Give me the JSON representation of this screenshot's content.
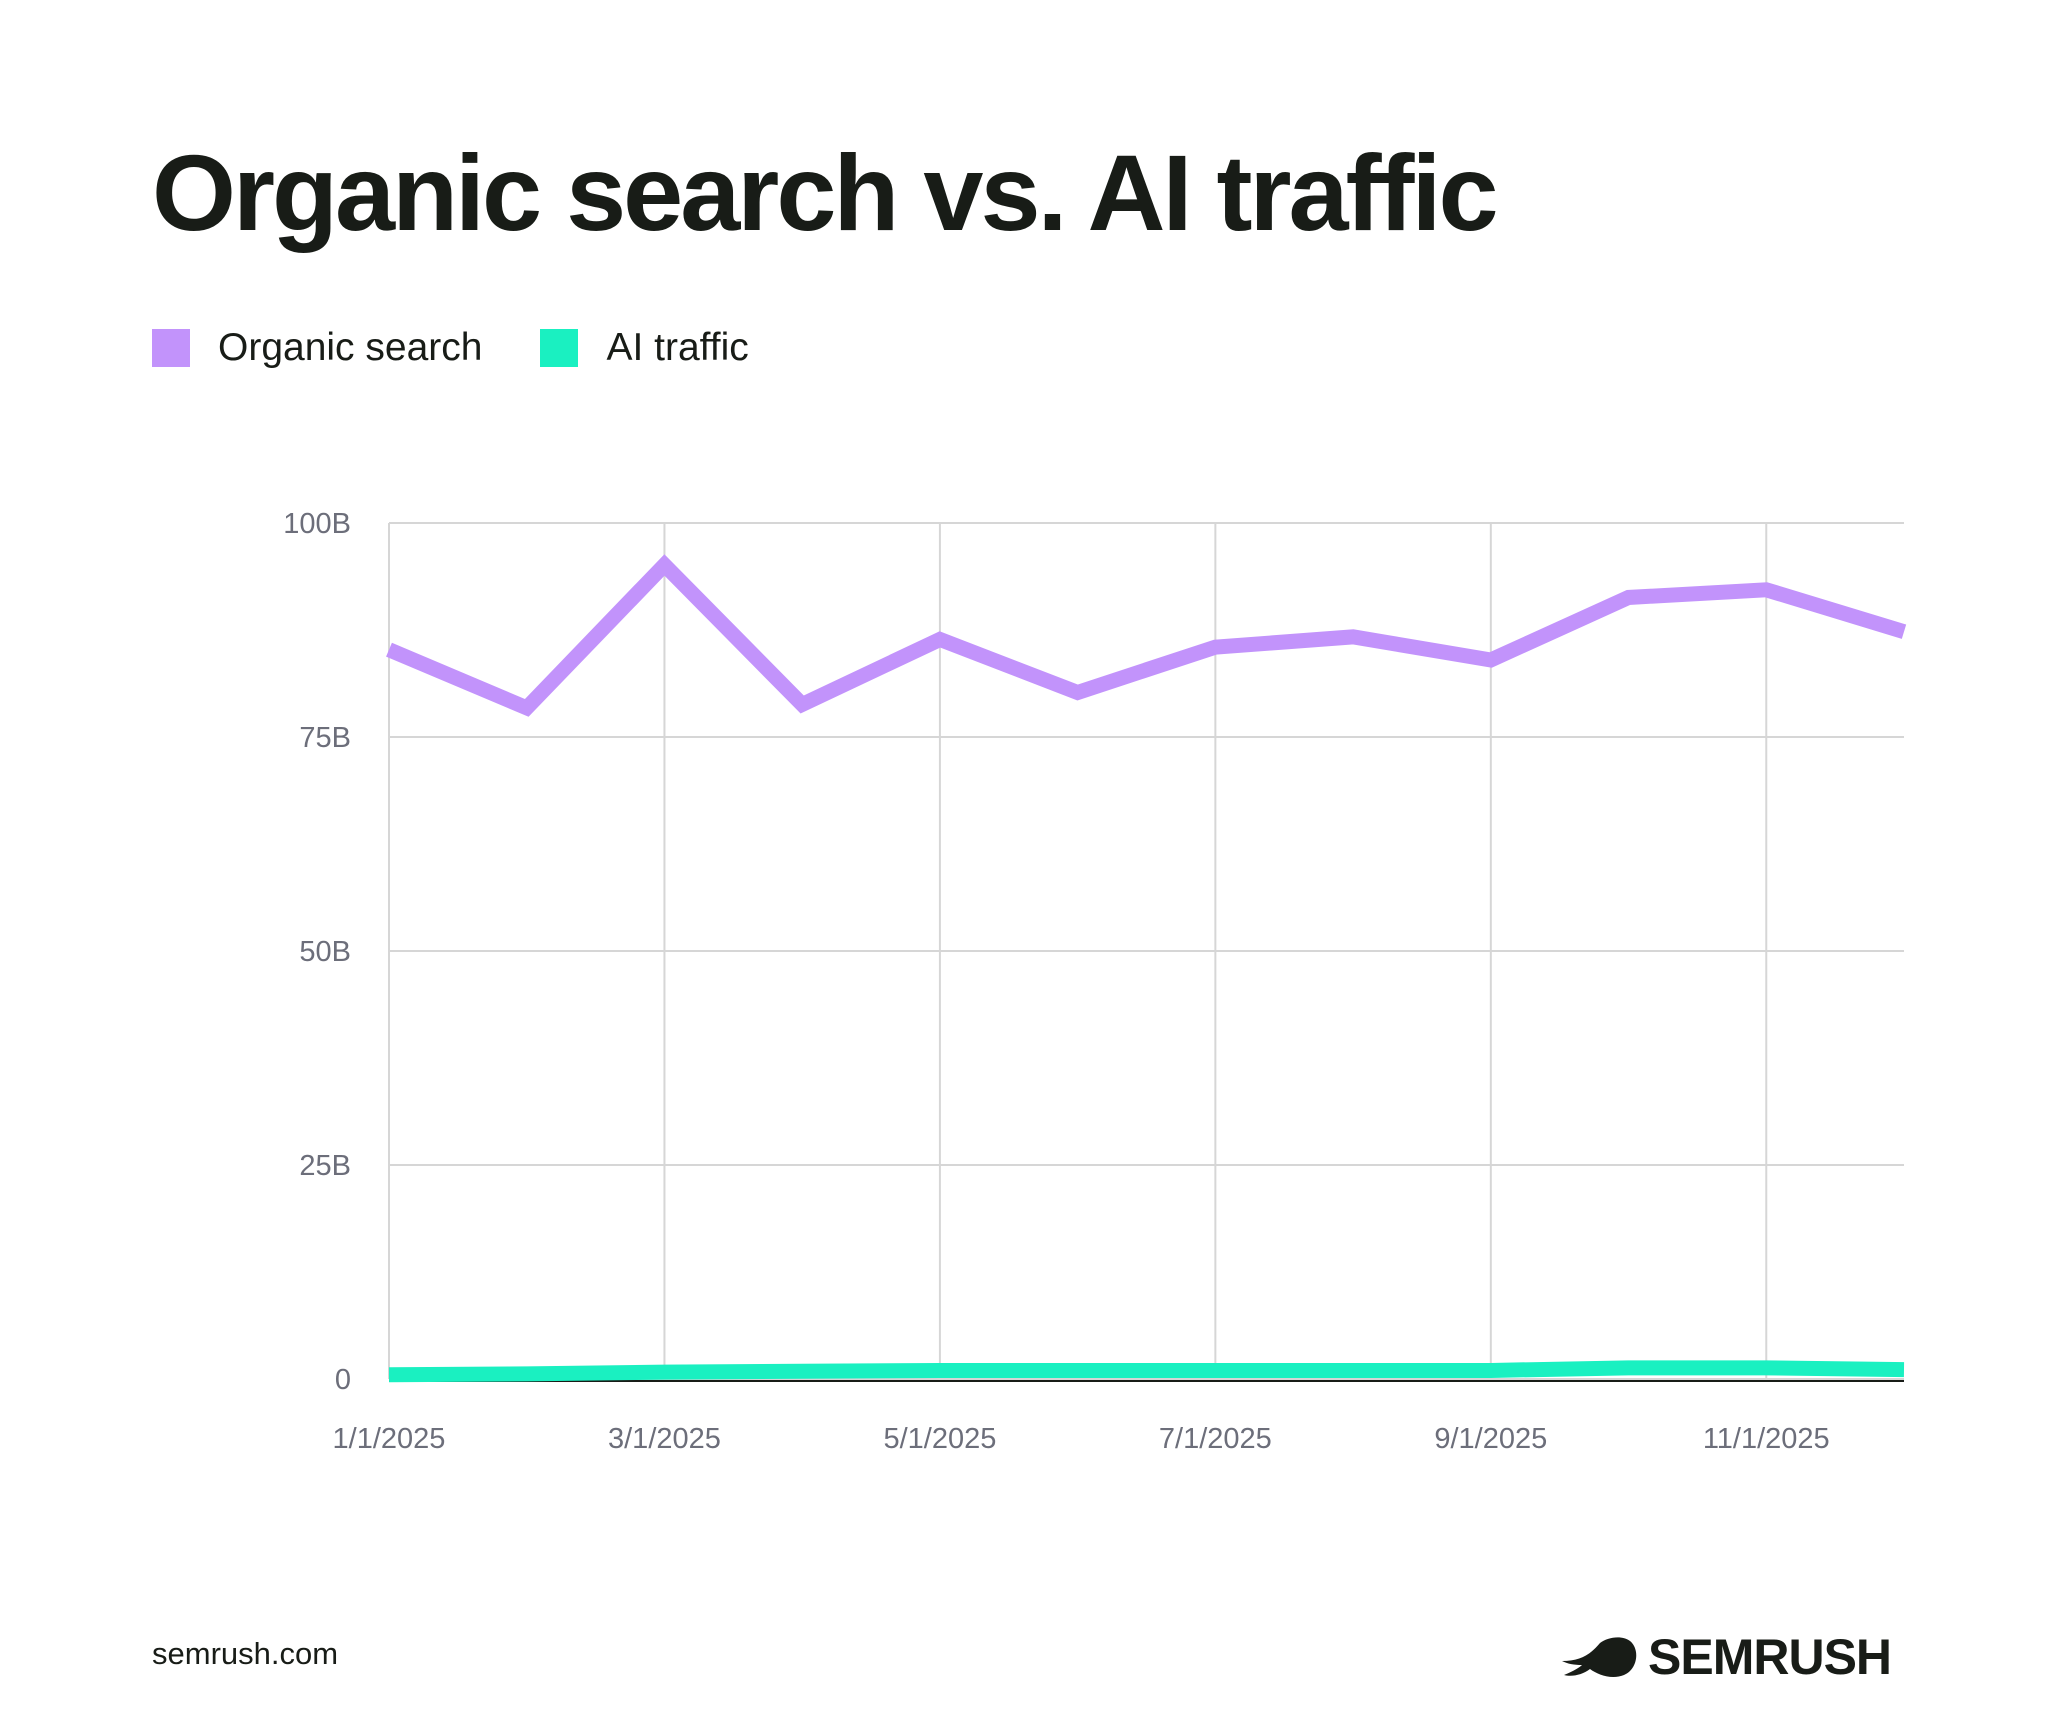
{
  "chart_data": {
    "type": "line",
    "title": "Organic search vs. AI traffic",
    "x": [
      "1/1/2025",
      "2/1/2025",
      "3/1/2025",
      "4/1/2025",
      "5/1/2025",
      "6/1/2025",
      "7/1/2025",
      "8/1/2025",
      "9/1/2025",
      "10/1/2025",
      "11/1/2025",
      "12/1/2025"
    ],
    "x_tick_labels": [
      "1/1/2025",
      "3/1/2025",
      "5/1/2025",
      "7/1/2025",
      "9/1/2025",
      "11/1/2025"
    ],
    "y_tick_labels": [
      "0",
      "25B",
      "50B",
      "75B",
      "100B"
    ],
    "y_ticks": [
      0,
      25,
      50,
      75,
      100
    ],
    "ylim": [
      0,
      100
    ],
    "yunit": "billions",
    "grid": true,
    "legend_position": "top-left",
    "series": [
      {
        "name": "Organic search",
        "color": "#c293fb",
        "values": [
          85.2,
          78.4,
          95.1,
          78.8,
          86.4,
          80.2,
          85.5,
          86.7,
          84.0,
          91.3,
          92.2,
          87.3
        ]
      },
      {
        "name": "AI traffic",
        "color": "#1af0c1",
        "values": [
          0.5,
          0.6,
          0.8,
          0.9,
          1.0,
          1.0,
          1.0,
          1.0,
          1.0,
          1.3,
          1.3,
          1.1
        ]
      }
    ]
  },
  "footer": {
    "site": "semrush.com",
    "logo": "SEMRUSH"
  }
}
